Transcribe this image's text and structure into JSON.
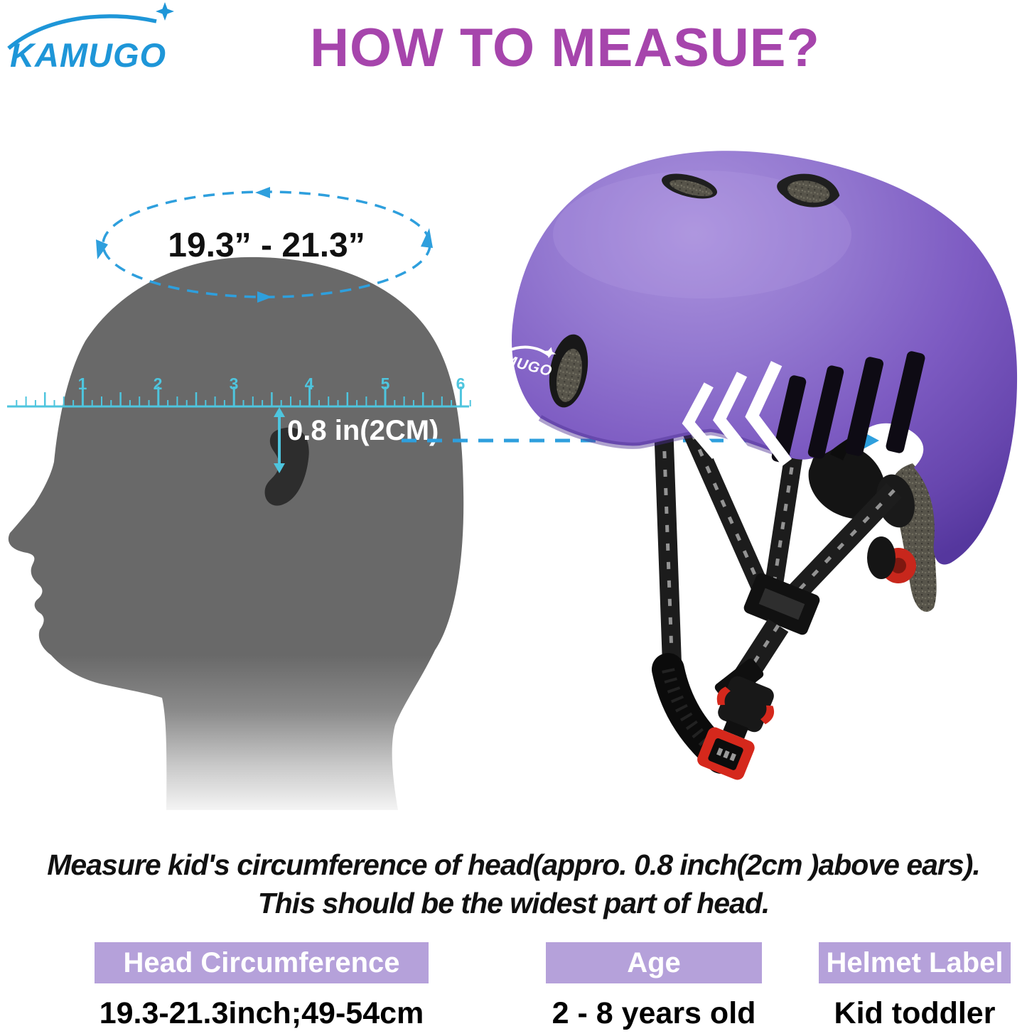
{
  "brand": {
    "name": "KAMUGO"
  },
  "title": "HOW TO MEASUE?",
  "measure": {
    "circumference_range": "19.3” - 21.3”",
    "gap_label": "0.8 in(2CM)"
  },
  "ruler": {
    "numbers": [
      "1",
      "2",
      "3",
      "4",
      "5",
      "6"
    ]
  },
  "helmet": {
    "partial_logo": "MUGO"
  },
  "description": {
    "line1": "Measure kid's circumference of head(appro. 0.8 inch(2cm )above ears).",
    "line2": "This should be the widest part of head."
  },
  "table": {
    "columns": [
      {
        "header": "Head Circumference",
        "value": "19.3-21.3inch;49-54cm"
      },
      {
        "header": "Age",
        "value": "2 - 8 years old"
      },
      {
        "header": "Helmet Label",
        "value": "Kid toddler"
      }
    ]
  },
  "icons": {
    "sparkle": "4-point-star",
    "rotation_arrows": "dashed-ellipse-arrows",
    "gap_arrow": "vertical-double-arrow",
    "pointer": "dashed-line-right-arrow"
  },
  "colors": {
    "brand_blue": "#1e96d8",
    "title_purple": "#a645ac",
    "ruler_cyan": "#4ec5de",
    "pointer_blue": "#2e9fdd",
    "head_gray": "#696969",
    "header_lavender": "#b5a1da",
    "helmet_purple": "#8265c8",
    "accent_red": "#d5281c"
  }
}
